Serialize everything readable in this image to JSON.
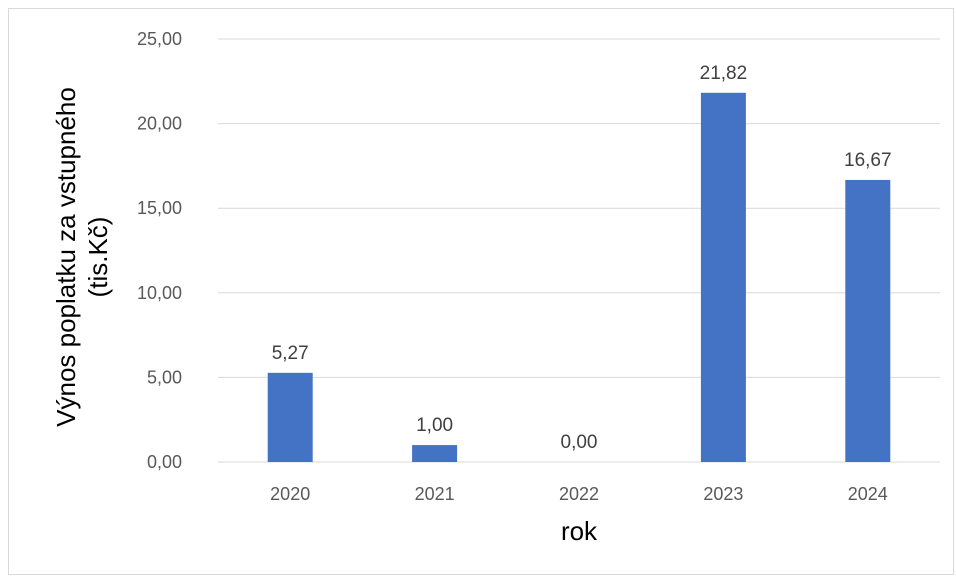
{
  "chart_data": {
    "type": "bar",
    "categories": [
      "2020",
      "2021",
      "2022",
      "2023",
      "2024"
    ],
    "values": [
      5.27,
      1.0,
      0.0,
      21.82,
      16.67
    ],
    "data_labels": [
      "5,27",
      "1,00",
      "0,00",
      "21,82",
      "16,67"
    ],
    "title": "",
    "xlabel": "rok",
    "ylabel_lines": [
      "Výnos poplatku za vstupného",
      "(tis.Kč)"
    ],
    "ylim": [
      0,
      25
    ],
    "yticks": [
      0,
      5,
      10,
      15,
      20,
      25
    ],
    "ytick_labels": [
      "0,00",
      "5,00",
      "10,00",
      "15,00",
      "20,00",
      "25,00"
    ],
    "grid": true,
    "legend": "none",
    "colors": {
      "bar": "#4472c4",
      "grid": "#d9d9d9",
      "tick_text": "#595959",
      "data_label_text": "#404040"
    }
  }
}
